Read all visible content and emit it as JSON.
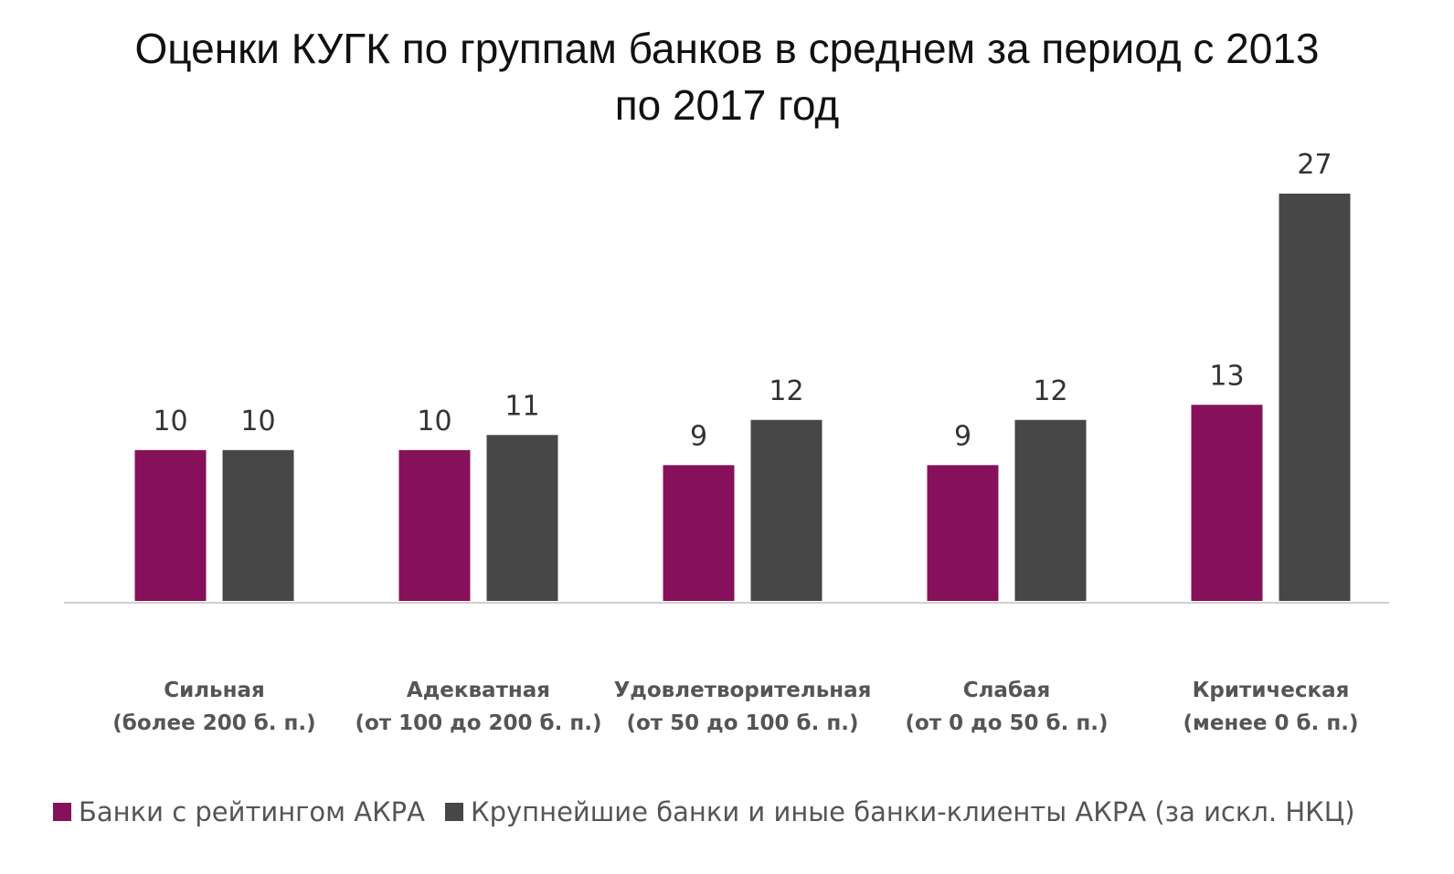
{
  "chart_data": {
    "type": "bar",
    "title_lines": [
      "Оценки КУГК по группам банков в среднем за период с 2013",
      "по 2017 год"
    ],
    "categories": [
      [
        "Сильная",
        "(более 200 б. п.)"
      ],
      [
        "Адекватная",
        "(от 100 до 200 б. п.)"
      ],
      [
        "Удовлетворительная",
        "(от 50 до 100 б. п.)"
      ],
      [
        "Слабая",
        "(от 0 до 50 б. п.)"
      ],
      [
        "Критическая",
        "(менее 0 б. п.)"
      ]
    ],
    "series": [
      {
        "name": "Банки с рейтингом АКРА",
        "color": "#86105A",
        "values": [
          10,
          10,
          9,
          9,
          13
        ]
      },
      {
        "name": "Крупнейшие банки и иные банки-клиенты АКРА (за искл. НКЦ)",
        "color": "#474747",
        "values": [
          10,
          11,
          12,
          12,
          27
        ]
      }
    ],
    "ylim": [
      0,
      27
    ],
    "grid": false,
    "data_labels": true,
    "legend_position": "bottom"
  }
}
